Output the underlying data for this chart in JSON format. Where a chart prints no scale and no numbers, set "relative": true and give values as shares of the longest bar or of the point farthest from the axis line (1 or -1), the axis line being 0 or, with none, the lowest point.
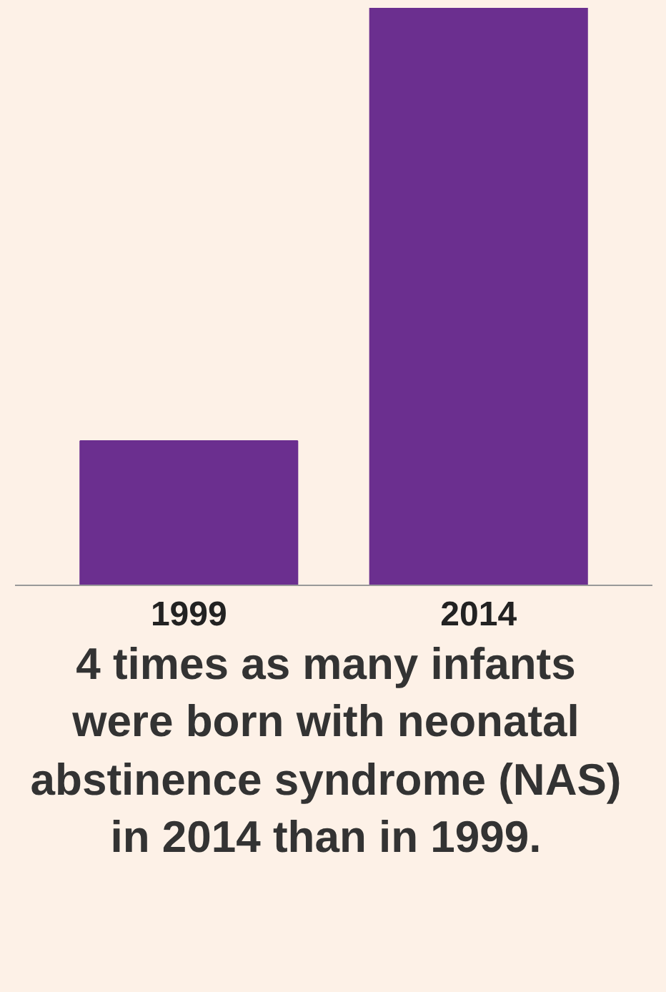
{
  "chart_data": {
    "type": "bar",
    "relative": true,
    "categories": [
      "1999",
      "2014"
    ],
    "values": [
      0.25,
      1
    ],
    "color": "#6b2f8f",
    "annotations": [
      "4 times as many infants were born with neonatal abstinence syndrome (NAS) in 2014 than in 1999."
    ]
  }
}
